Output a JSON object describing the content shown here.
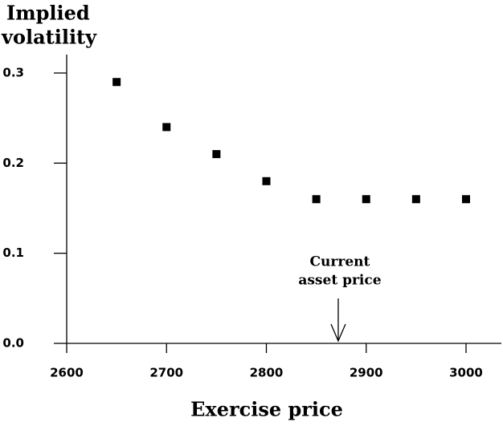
{
  "chart_data": {
    "type": "scatter",
    "xlabel": "Exercise price",
    "ylabel": [
      "Implied",
      "volatility"
    ],
    "x": [
      2650,
      2700,
      2750,
      2800,
      2850,
      2900,
      2950,
      3000
    ],
    "values": [
      0.29,
      0.24,
      0.21,
      0.18,
      0.16,
      0.16,
      0.16,
      0.16
    ],
    "color": "#000000",
    "xlim": [
      2600,
      3000
    ],
    "xticks": [
      2600,
      2700,
      2800,
      2900,
      3000
    ],
    "ylim": [
      0,
      0.3
    ],
    "yticks": [
      {
        "value": 0,
        "label": "0.0"
      },
      {
        "value": 0.1,
        "label": "0.1"
      },
      {
        "value": 0.2,
        "label": "0.2"
      },
      {
        "value": 0.3,
        "label": "0.3"
      }
    ],
    "annotation": {
      "text": [
        "Current",
        "asset price"
      ],
      "x": 2872
    }
  }
}
